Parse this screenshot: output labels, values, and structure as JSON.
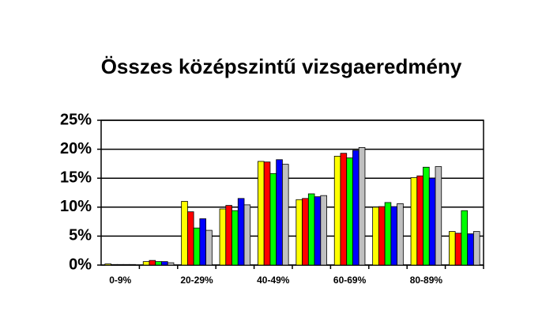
{
  "chart_data": {
    "type": "bar",
    "title": "Összes középszintű vizsgaeredmény",
    "categories": [
      "0-9%",
      null,
      "20-29%",
      null,
      "40-49%",
      null,
      "60-69%",
      null,
      "80-89%",
      null
    ],
    "series": [
      {
        "color": "#ffff00",
        "values": [
          0.2,
          0.6,
          11,
          9.7,
          17.9,
          11.3,
          18.8,
          10,
          15.1,
          5.8
        ]
      },
      {
        "color": "#ff0000",
        "values": [
          0.1,
          0.8,
          9.2,
          10.3,
          17.8,
          11.5,
          19.3,
          10.1,
          15.4,
          5.5
        ]
      },
      {
        "color": "#00ff00",
        "values": [
          0.1,
          0.6,
          6.4,
          9.4,
          15.8,
          12.3,
          18.5,
          10.8,
          16.9,
          9.4
        ]
      },
      {
        "color": "#0000ff",
        "values": [
          0.1,
          0.6,
          8,
          11.5,
          18.2,
          11.8,
          19.8,
          10.1,
          15,
          5.4
        ]
      },
      {
        "color": "#c0c0c0",
        "values": [
          0.1,
          0.4,
          6,
          10.4,
          17.4,
          12,
          20.3,
          10.6,
          17,
          5.8
        ]
      }
    ],
    "ylim": [
      0,
      25
    ],
    "yticks": [
      {
        "value": 0,
        "label": "0%"
      },
      {
        "value": 5,
        "label": "5%"
      },
      {
        "value": 10,
        "label": "10%"
      },
      {
        "value": 15,
        "label": "15%"
      },
      {
        "value": 20,
        "label": "20%"
      },
      {
        "value": 25,
        "label": "25%"
      }
    ],
    "grid": true
  }
}
